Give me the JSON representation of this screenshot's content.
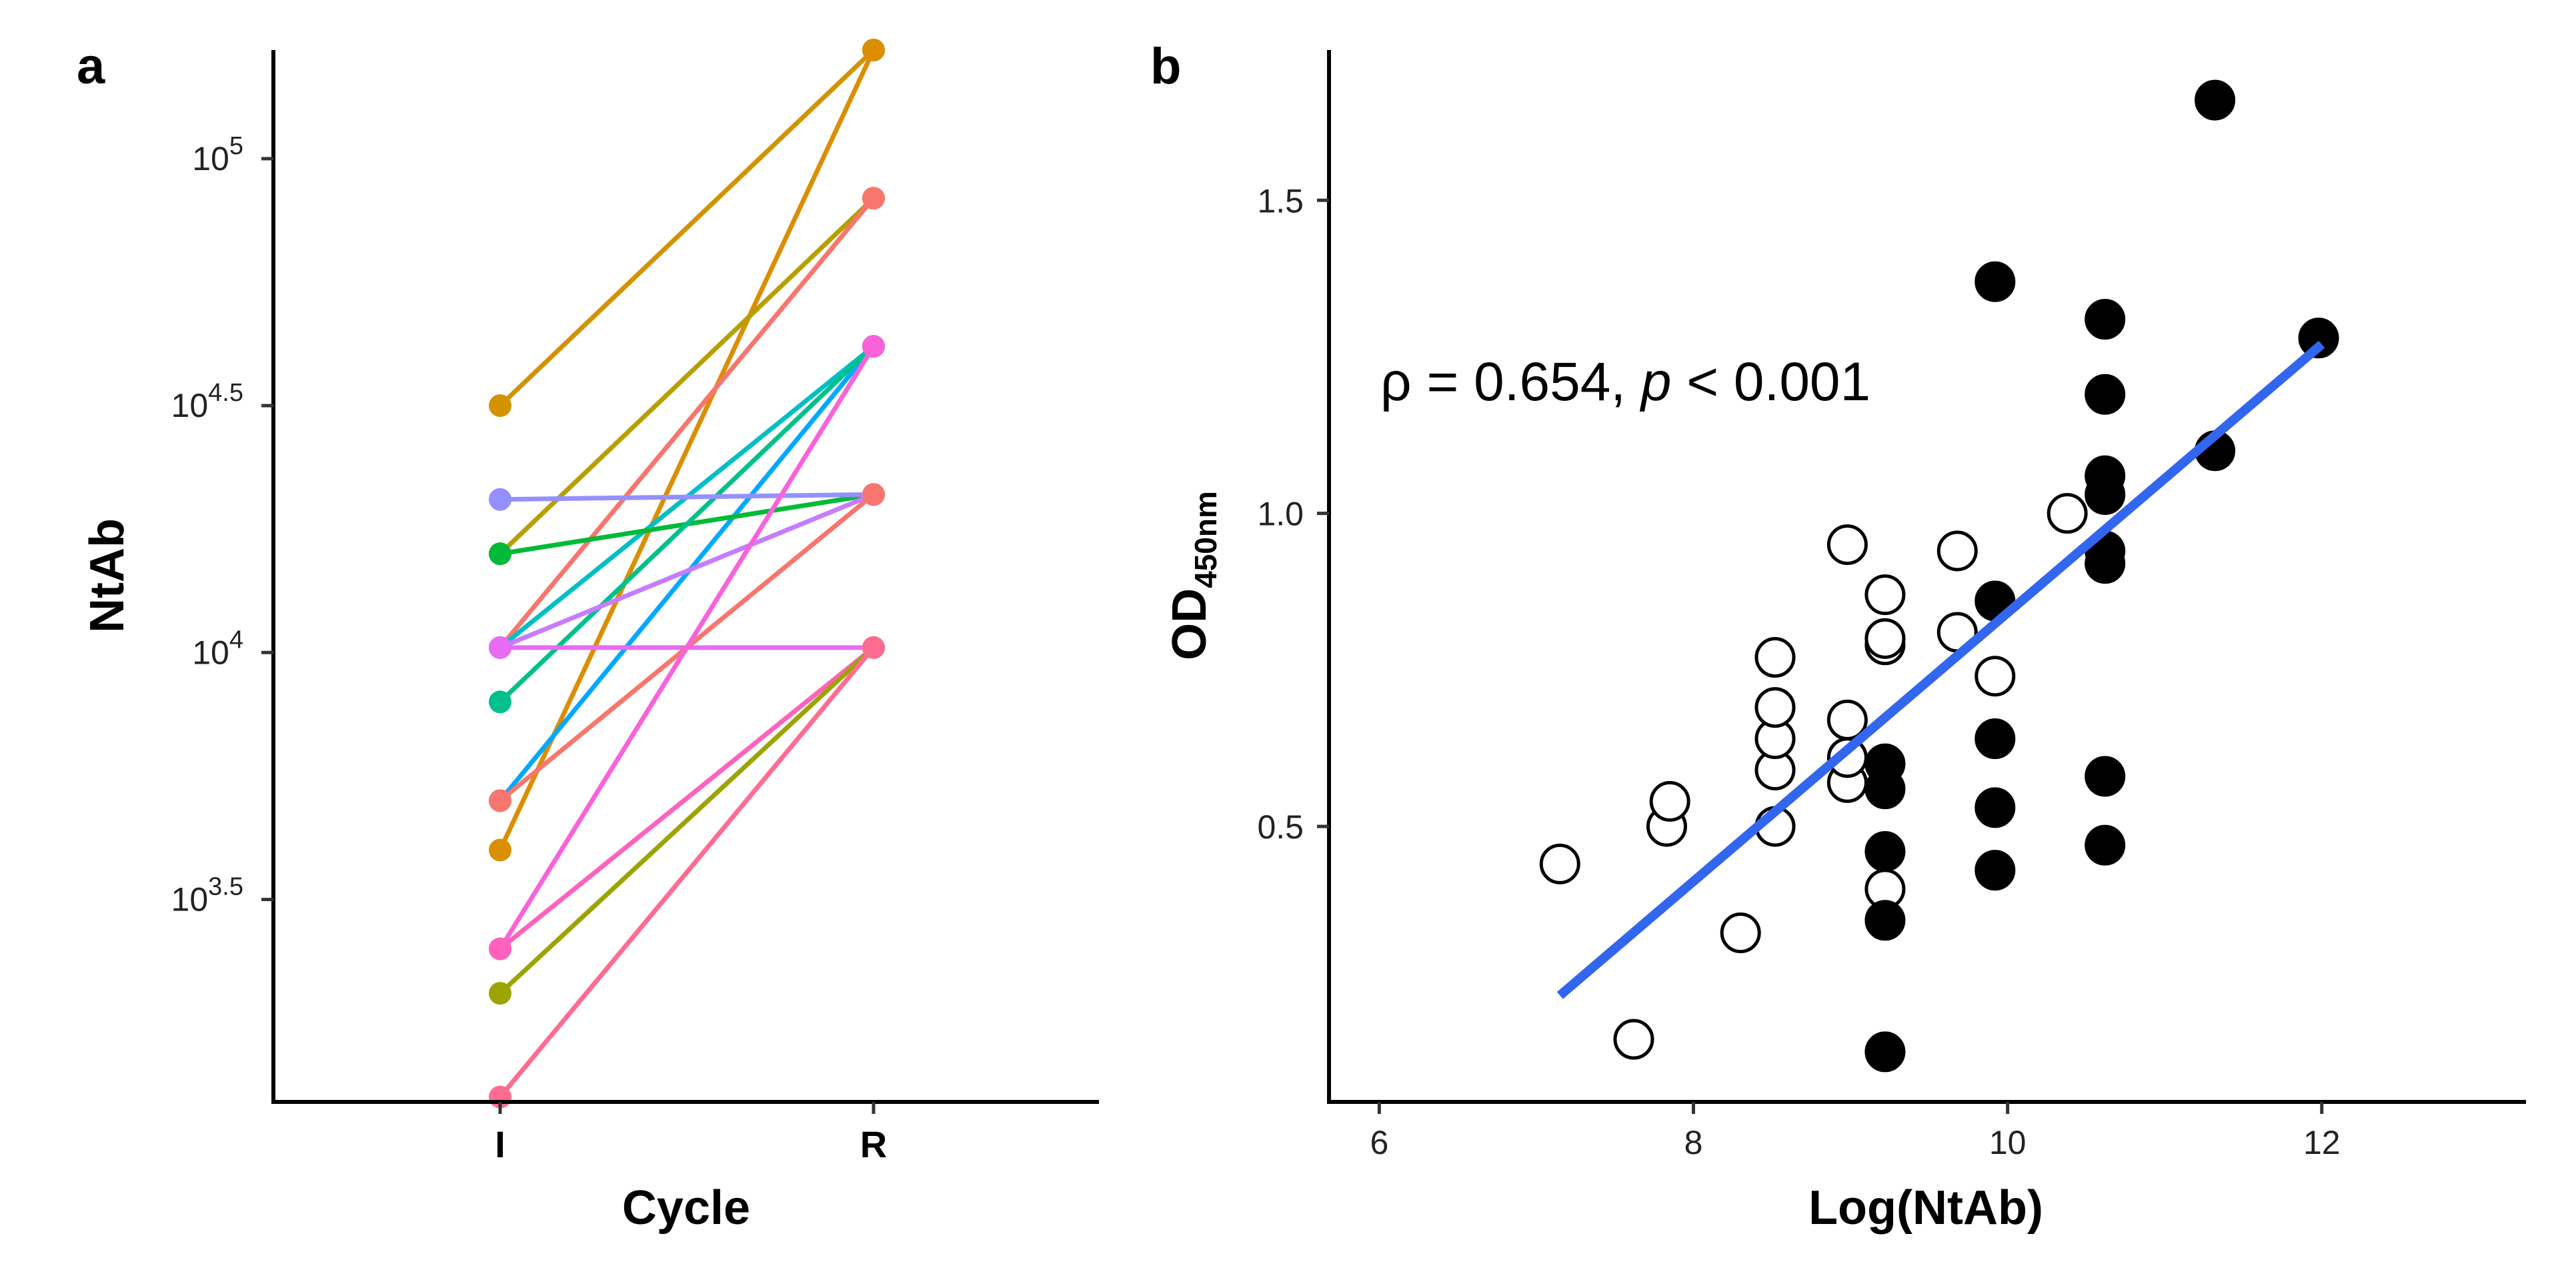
{
  "panels": [
    {
      "label": "a"
    },
    {
      "label": "b"
    }
  ],
  "chart_data": [
    {
      "type": "line",
      "panel": "a",
      "xlabel": "Cycle",
      "ylabel": "NtAb",
      "categories": [
        "I",
        "R"
      ],
      "y_scale": "log10",
      "ylim": [
        3.09,
        5.22
      ],
      "yticks": [
        {
          "value": 3.5,
          "base": "10",
          "exp": "3.5"
        },
        {
          "value": 4.0,
          "base": "10",
          "exp": "4"
        },
        {
          "value": 4.5,
          "base": "10",
          "exp": "4.5"
        },
        {
          "value": 5.0,
          "base": "10",
          "exp": "5"
        }
      ],
      "series": [
        {
          "color": "#D39200",
          "values": [
            4.5,
            5.22
          ]
        },
        {
          "color": "#DB8E00",
          "values": [
            3.6,
            5.22
          ]
        },
        {
          "color": "#B79F00",
          "values": [
            4.2,
            4.92
          ]
        },
        {
          "color": "#F8766D",
          "values": [
            4.01,
            4.92
          ]
        },
        {
          "color": "#00A9FF",
          "values": [
            3.7,
            4.62
          ]
        },
        {
          "color": "#00BFC4",
          "values": [
            4.01,
            4.62
          ]
        },
        {
          "color": "#00BA38",
          "values": [
            4.2,
            4.32
          ]
        },
        {
          "color": "#00C08B",
          "values": [
            3.9,
            4.62
          ]
        },
        {
          "color": "#9590FF",
          "values": [
            4.31,
            4.32
          ]
        },
        {
          "color": "#C77CFF",
          "values": [
            4.01,
            4.32
          ]
        },
        {
          "color": "#E76BF3",
          "values": [
            4.01,
            4.01
          ]
        },
        {
          "color": "#F8766D",
          "values": [
            3.7,
            4.32
          ]
        },
        {
          "color": "#FA62DB",
          "values": [
            3.4,
            4.62
          ]
        },
        {
          "color": "#FF62BC",
          "values": [
            3.4,
            4.01
          ]
        },
        {
          "color": "#9BA400",
          "values": [
            3.31,
            4.01
          ]
        },
        {
          "color": "#FF6C91",
          "values": [
            3.1,
            4.01
          ]
        }
      ]
    },
    {
      "type": "scatter",
      "panel": "b",
      "xlabel": "Log(NtAb)",
      "ylabel": "OD",
      "ylabel_sub": "450nm",
      "xlim": [
        5.68,
        13.3
      ],
      "ylim": [
        0.06,
        1.74
      ],
      "xticks": [
        6,
        8,
        10,
        12
      ],
      "yticks": [
        "0.5",
        "1.0",
        "1.5"
      ],
      "annotation": {
        "rho_symbol": "ρ",
        "rho_text": " = 0.654, ",
        "p_symbol": "p",
        "p_text": " < 0.001"
      },
      "fit_line": {
        "color": "#3366EE",
        "x": [
          7.15,
          12.0
        ],
        "y": [
          0.23,
          1.27
        ]
      },
      "series": [
        {
          "name": "open",
          "fill": "#FFFFFF",
          "points": [
            [
              7.15,
              0.44
            ],
            [
              7.62,
              0.16
            ],
            [
              7.83,
              0.5
            ],
            [
              7.85,
              0.54
            ],
            [
              8.3,
              0.33
            ],
            [
              8.52,
              0.5
            ],
            [
              8.52,
              0.59
            ],
            [
              8.52,
              0.64
            ],
            [
              8.52,
              0.69
            ],
            [
              8.52,
              0.77
            ],
            [
              8.98,
              0.57
            ],
            [
              8.98,
              0.61
            ],
            [
              8.98,
              0.67
            ],
            [
              8.98,
              0.95
            ],
            [
              9.22,
              0.4
            ],
            [
              9.22,
              0.79
            ],
            [
              9.22,
              0.8
            ],
            [
              9.22,
              0.87
            ],
            [
              9.68,
              0.81
            ],
            [
              9.68,
              0.94
            ],
            [
              9.92,
              0.74
            ],
            [
              10.38,
              1.0
            ]
          ]
        },
        {
          "name": "filled",
          "fill": "#000000",
          "points": [
            [
              9.22,
              0.14
            ],
            [
              9.22,
              0.35
            ],
            [
              9.22,
              0.46
            ],
            [
              9.22,
              0.56
            ],
            [
              9.22,
              0.6
            ],
            [
              9.92,
              0.43
            ],
            [
              9.92,
              0.53
            ],
            [
              9.92,
              0.64
            ],
            [
              9.92,
              0.86
            ],
            [
              9.92,
              1.37
            ],
            [
              10.62,
              0.47
            ],
            [
              10.62,
              0.58
            ],
            [
              10.62,
              0.92
            ],
            [
              10.62,
              0.94
            ],
            [
              10.62,
              1.03
            ],
            [
              10.62,
              1.06
            ],
            [
              10.62,
              1.19
            ],
            [
              10.62,
              1.31
            ],
            [
              11.32,
              1.1
            ],
            [
              11.32,
              1.66
            ],
            [
              11.98,
              1.28
            ]
          ]
        }
      ]
    }
  ]
}
